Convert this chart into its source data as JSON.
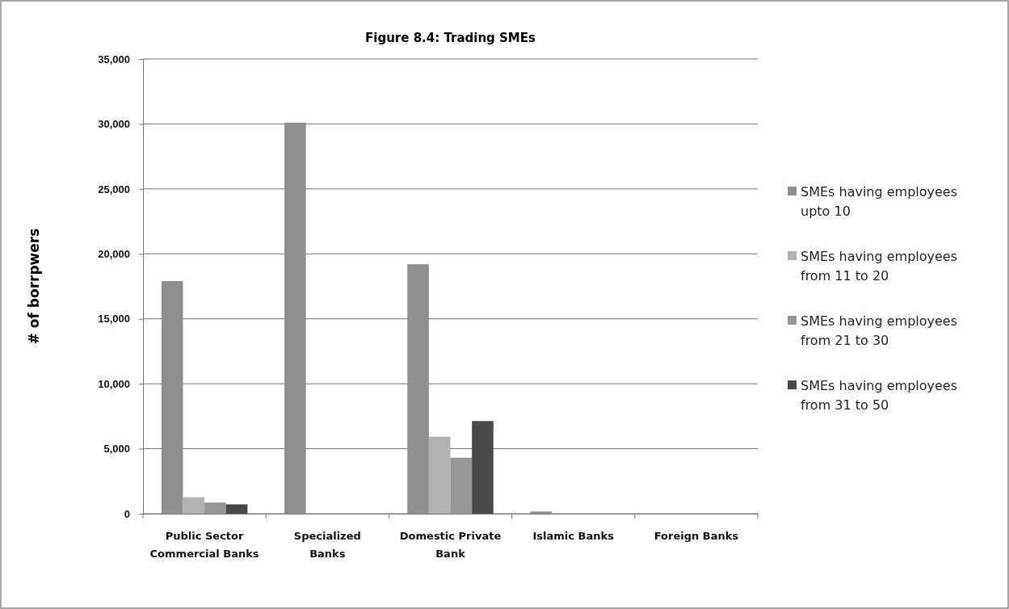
{
  "chart_data": {
    "type": "bar",
    "title": "Figure 8.4: Trading SMEs",
    "ylabel": "# of borrpwers",
    "categories": [
      "Public Sector Commercial Banks",
      "Specialized Banks",
      "Domestic Private Bank",
      "Islamic Banks",
      "Foreign Banks"
    ],
    "series": [
      {
        "name": "SMEs having employees upto 10",
        "color": "#8f8f8f",
        "values": [
          17900,
          30100,
          19200,
          170,
          0
        ]
      },
      {
        "name": "SMEs having employees from 11 to 20",
        "color": "#b2b2b2",
        "values": [
          1270,
          0,
          5930,
          0,
          0
        ]
      },
      {
        "name": "SMEs having employees from 21 to 30",
        "color": "#969696",
        "values": [
          860,
          0,
          4310,
          0,
          0
        ]
      },
      {
        "name": "SMEs having employees from 31 to 50",
        "color": "#494949",
        "values": [
          720,
          0,
          7130,
          0,
          0
        ]
      }
    ],
    "ylim": [
      0,
      35000
    ],
    "yticks": [
      {
        "value": 0,
        "label": "0"
      },
      {
        "value": 5000,
        "label": "5,000"
      },
      {
        "value": 10000,
        "label": "10,000"
      },
      {
        "value": 15000,
        "label": "15,000"
      },
      {
        "value": 20000,
        "label": "20,000"
      },
      {
        "value": 25000,
        "label": "25,000"
      },
      {
        "value": 30000,
        "label": "30,000"
      },
      {
        "value": 35000,
        "label": "35,000"
      }
    ],
    "grid": "y",
    "legend": "right"
  }
}
